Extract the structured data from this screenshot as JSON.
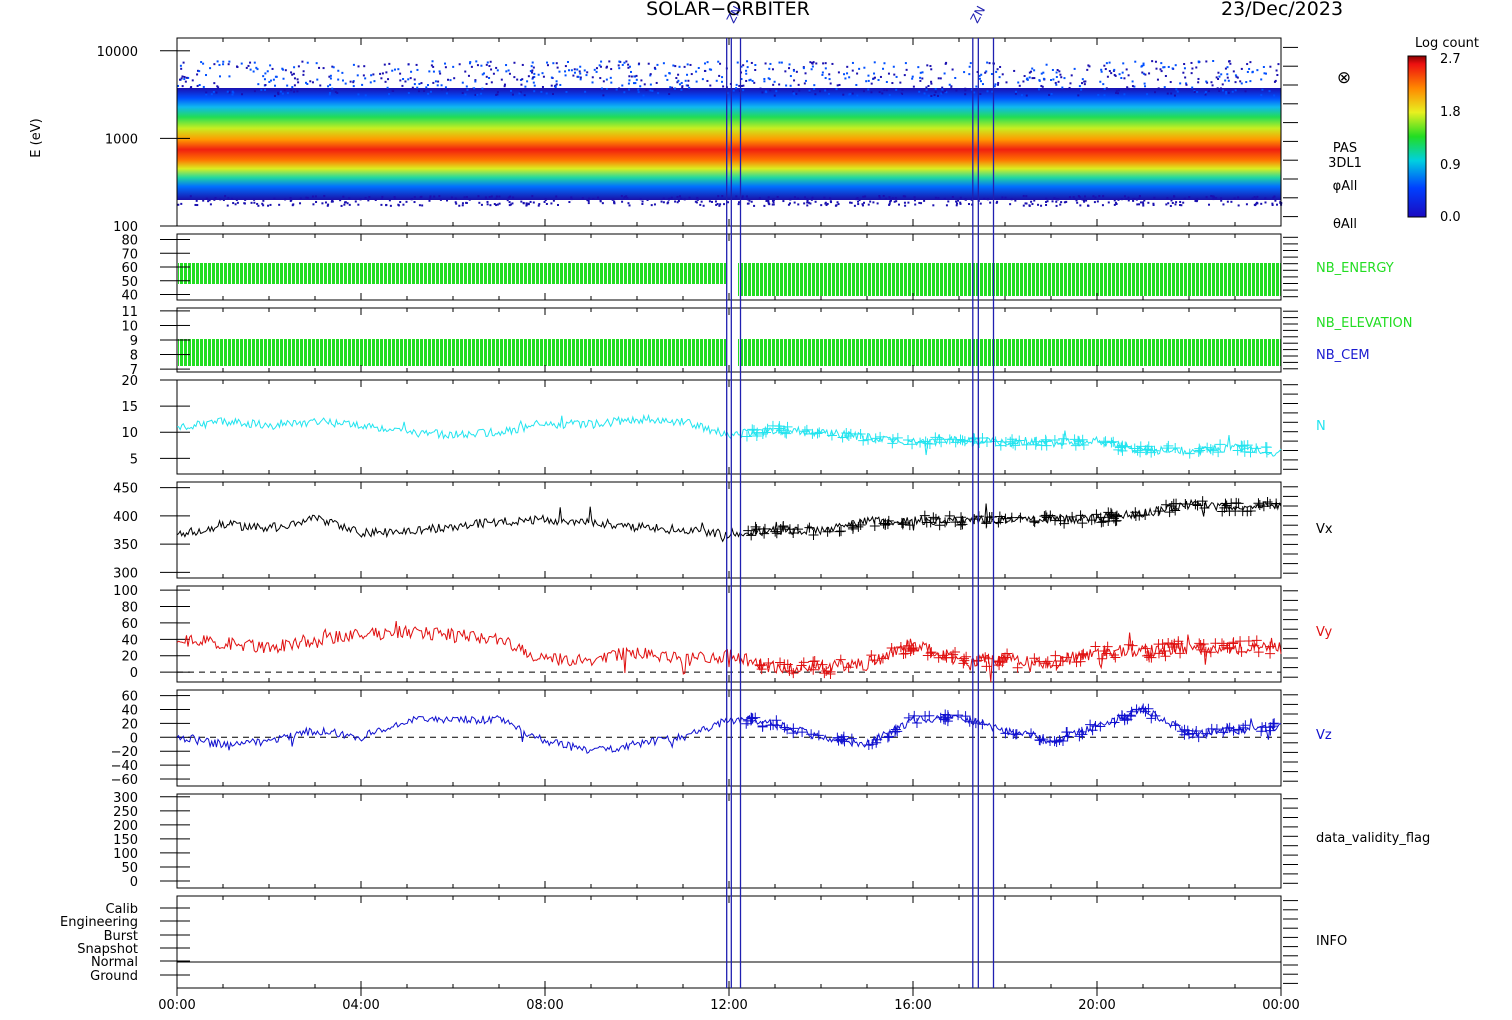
{
  "header": {
    "mission": "SOLAR−ORBITER",
    "date": "23/Dec/2023"
  },
  "colors": {
    "axis": "#000000",
    "energy": "#22dd22",
    "elevation": "#22dd22",
    "cem": "#1a1ad0",
    "density": "#22e4ef",
    "vx": "#000000",
    "vy": "#e01010",
    "vz": "#1010d0",
    "marker": "#2020b0"
  },
  "colorbar": {
    "title": "Log count",
    "ticks": [
      "2.7",
      "1.8",
      "0.9",
      "0.0"
    ]
  },
  "markers": {
    "labels": [
      "ZN",
      "ZN",
      "ZN",
      "ZN"
    ],
    "times_hours": [
      11.95,
      12.05,
      12.25,
      17.3,
      17.42,
      17.75
    ]
  },
  "chart_data": [
    {
      "id": "spectrogram",
      "type": "heatmap",
      "ylabel": "E (eV)",
      "yscale": "log",
      "ylim": [
        100,
        14000
      ],
      "yticks": [
        "10000",
        "1000",
        "100"
      ],
      "right_labels": [
        "PAS",
        "3DL1",
        "φAll",
        "θAll"
      ],
      "symbol": "⊗",
      "color_scale": [
        0.0,
        2.7
      ],
      "peak_energy_ev": 850,
      "xlim_hours": [
        0,
        24
      ]
    },
    {
      "id": "nb_energy",
      "type": "bar",
      "yticks": [
        "80",
        "70",
        "60",
        "50",
        "40"
      ],
      "ylim": [
        36,
        84
      ],
      "value_range": [
        48,
        64
      ],
      "right_label": "NB_ENERGY"
    },
    {
      "id": "nb_elevation",
      "type": "bar",
      "yticks": [
        "11",
        "10",
        "9",
        "8",
        "7"
      ],
      "ylim": [
        6.8,
        11.2
      ],
      "value_range": [
        7,
        9
      ],
      "right_labels": [
        "NB_ELEVATION",
        "NB_CEM"
      ]
    },
    {
      "id": "density",
      "type": "line",
      "yticks": [
        "20",
        "15",
        "10",
        "5"
      ],
      "ylim": [
        2,
        20
      ],
      "right_label": "N",
      "x": [
        0,
        1,
        2,
        3,
        4,
        5,
        6,
        7,
        8,
        9,
        10,
        11,
        12,
        13,
        14,
        15,
        16,
        17,
        18,
        19,
        20,
        21,
        22,
        23,
        24
      ],
      "values": [
        11,
        12,
        11.5,
        12,
        11.5,
        10,
        9.5,
        10,
        11.5,
        11.5,
        12.5,
        12,
        9.5,
        10.5,
        10,
        9,
        8,
        8.5,
        8,
        8,
        8.3,
        6.5,
        6.5,
        7,
        6
      ]
    },
    {
      "id": "vx",
      "type": "line",
      "yticks": [
        "450",
        "400",
        "350",
        "300"
      ],
      "ylim": [
        290,
        460
      ],
      "right_label": "Vx",
      "x": [
        0,
        1,
        2,
        3,
        4,
        5,
        6,
        7,
        8,
        9,
        10,
        11,
        12,
        13,
        14,
        15,
        16,
        17,
        18,
        19,
        20,
        21,
        22,
        23,
        24
      ],
      "values": [
        365,
        385,
        378,
        395,
        370,
        372,
        382,
        390,
        393,
        390,
        380,
        375,
        368,
        375,
        375,
        390,
        392,
        392,
        393,
        395,
        395,
        405,
        420,
        415,
        420
      ]
    },
    {
      "id": "vy",
      "type": "line",
      "yticks": [
        "100",
        "80",
        "60",
        "40",
        "20",
        "0"
      ],
      "ylim": [
        -12,
        105
      ],
      "zero_line": true,
      "right_label": "Vy",
      "x": [
        0,
        1,
        2,
        3,
        4,
        5,
        6,
        7,
        8,
        9,
        10,
        11,
        12,
        13,
        14,
        15,
        16,
        17,
        18,
        19,
        20,
        21,
        22,
        23,
        24
      ],
      "values": [
        40,
        35,
        30,
        40,
        45,
        50,
        45,
        40,
        15,
        15,
        25,
        15,
        20,
        5,
        5,
        10,
        35,
        15,
        15,
        10,
        25,
        25,
        30,
        30,
        30
      ]
    },
    {
      "id": "vz",
      "type": "line",
      "yticks": [
        "60",
        "40",
        "20",
        "0",
        "−20",
        "−40",
        "−60"
      ],
      "ylim": [
        -70,
        68
      ],
      "zero_line": true,
      "right_label": "Vz",
      "x": [
        0,
        1,
        2,
        3,
        4,
        5,
        6,
        7,
        8,
        9,
        10,
        11,
        12,
        13,
        14,
        15,
        16,
        17,
        18,
        19,
        20,
        21,
        22,
        23,
        24
      ],
      "values": [
        0,
        -10,
        -5,
        10,
        0,
        25,
        25,
        25,
        -5,
        -20,
        -10,
        0,
        25,
        20,
        0,
        -10,
        25,
        30,
        10,
        -5,
        15,
        40,
        5,
        10,
        15
      ]
    },
    {
      "id": "data_validity_flag",
      "type": "line",
      "yticks": [
        "300",
        "250",
        "200",
        "150",
        "100",
        "50",
        "0"
      ],
      "ylim": [
        -25,
        310
      ],
      "right_label": "data_validity_flag"
    },
    {
      "id": "info",
      "type": "line",
      "yticks": [
        "Calib",
        "Engineering",
        "Burst",
        "Snapshot",
        "Normal",
        "Ground"
      ],
      "level": "Normal",
      "right_label": "INFO"
    }
  ],
  "xaxis": {
    "ticks": [
      "00:00",
      "04:00",
      "08:00",
      "12:00",
      "16:00",
      "20:00",
      "00:00"
    ]
  }
}
